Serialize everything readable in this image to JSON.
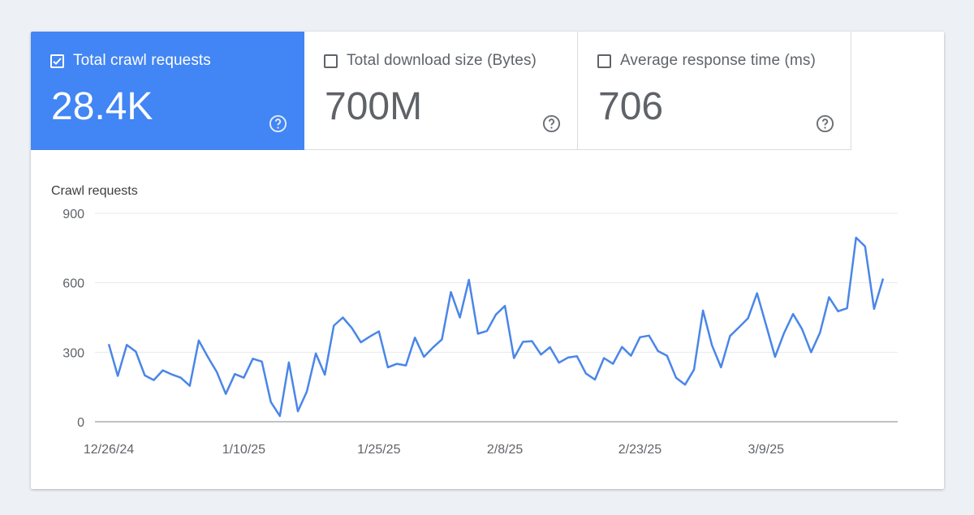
{
  "metrics": [
    {
      "label": "Total crawl requests",
      "value": "28.4K",
      "checked": true
    },
    {
      "label": "Total download size (Bytes)",
      "value": "700M",
      "checked": false
    },
    {
      "label": "Average response time (ms)",
      "value": "706",
      "checked": false
    }
  ],
  "colors": {
    "accent": "#4285f4",
    "line": "#4a86e8",
    "text": "#5f6368"
  },
  "chart_data": {
    "type": "line",
    "title": "Crawl requests",
    "xlabel": "",
    "ylabel": "",
    "ylim": [
      0,
      900
    ],
    "y_ticks": [
      "0",
      "300",
      "600",
      "900"
    ],
    "x_ticks": [
      "12/26/24",
      "1/10/25",
      "1/25/25",
      "2/8/25",
      "2/23/25",
      "3/9/25"
    ],
    "grid": true,
    "series": [
      {
        "values": [
          335,
          198,
          332,
          303,
          200,
          180,
          222,
          204,
          190,
          155,
          351,
          280,
          215,
          120,
          206,
          190,
          272,
          260,
          85,
          25,
          256,
          45,
          130,
          295,
          203,
          415,
          450,
          405,
          343,
          368,
          390,
          235,
          250,
          243,
          363,
          280,
          320,
          355,
          560,
          450,
          613,
          380,
          392,
          463,
          500,
          275,
          345,
          348,
          290,
          322,
          255,
          277,
          283,
          208,
          182,
          275,
          250,
          323,
          285,
          365,
          372,
          305,
          285,
          190,
          160,
          225,
          480,
          330,
          235,
          370,
          408,
          447,
          555,
          418,
          280,
          383,
          465,
          400,
          300,
          385,
          538,
          477,
          490,
          795,
          757,
          487,
          618
        ]
      }
    ]
  }
}
